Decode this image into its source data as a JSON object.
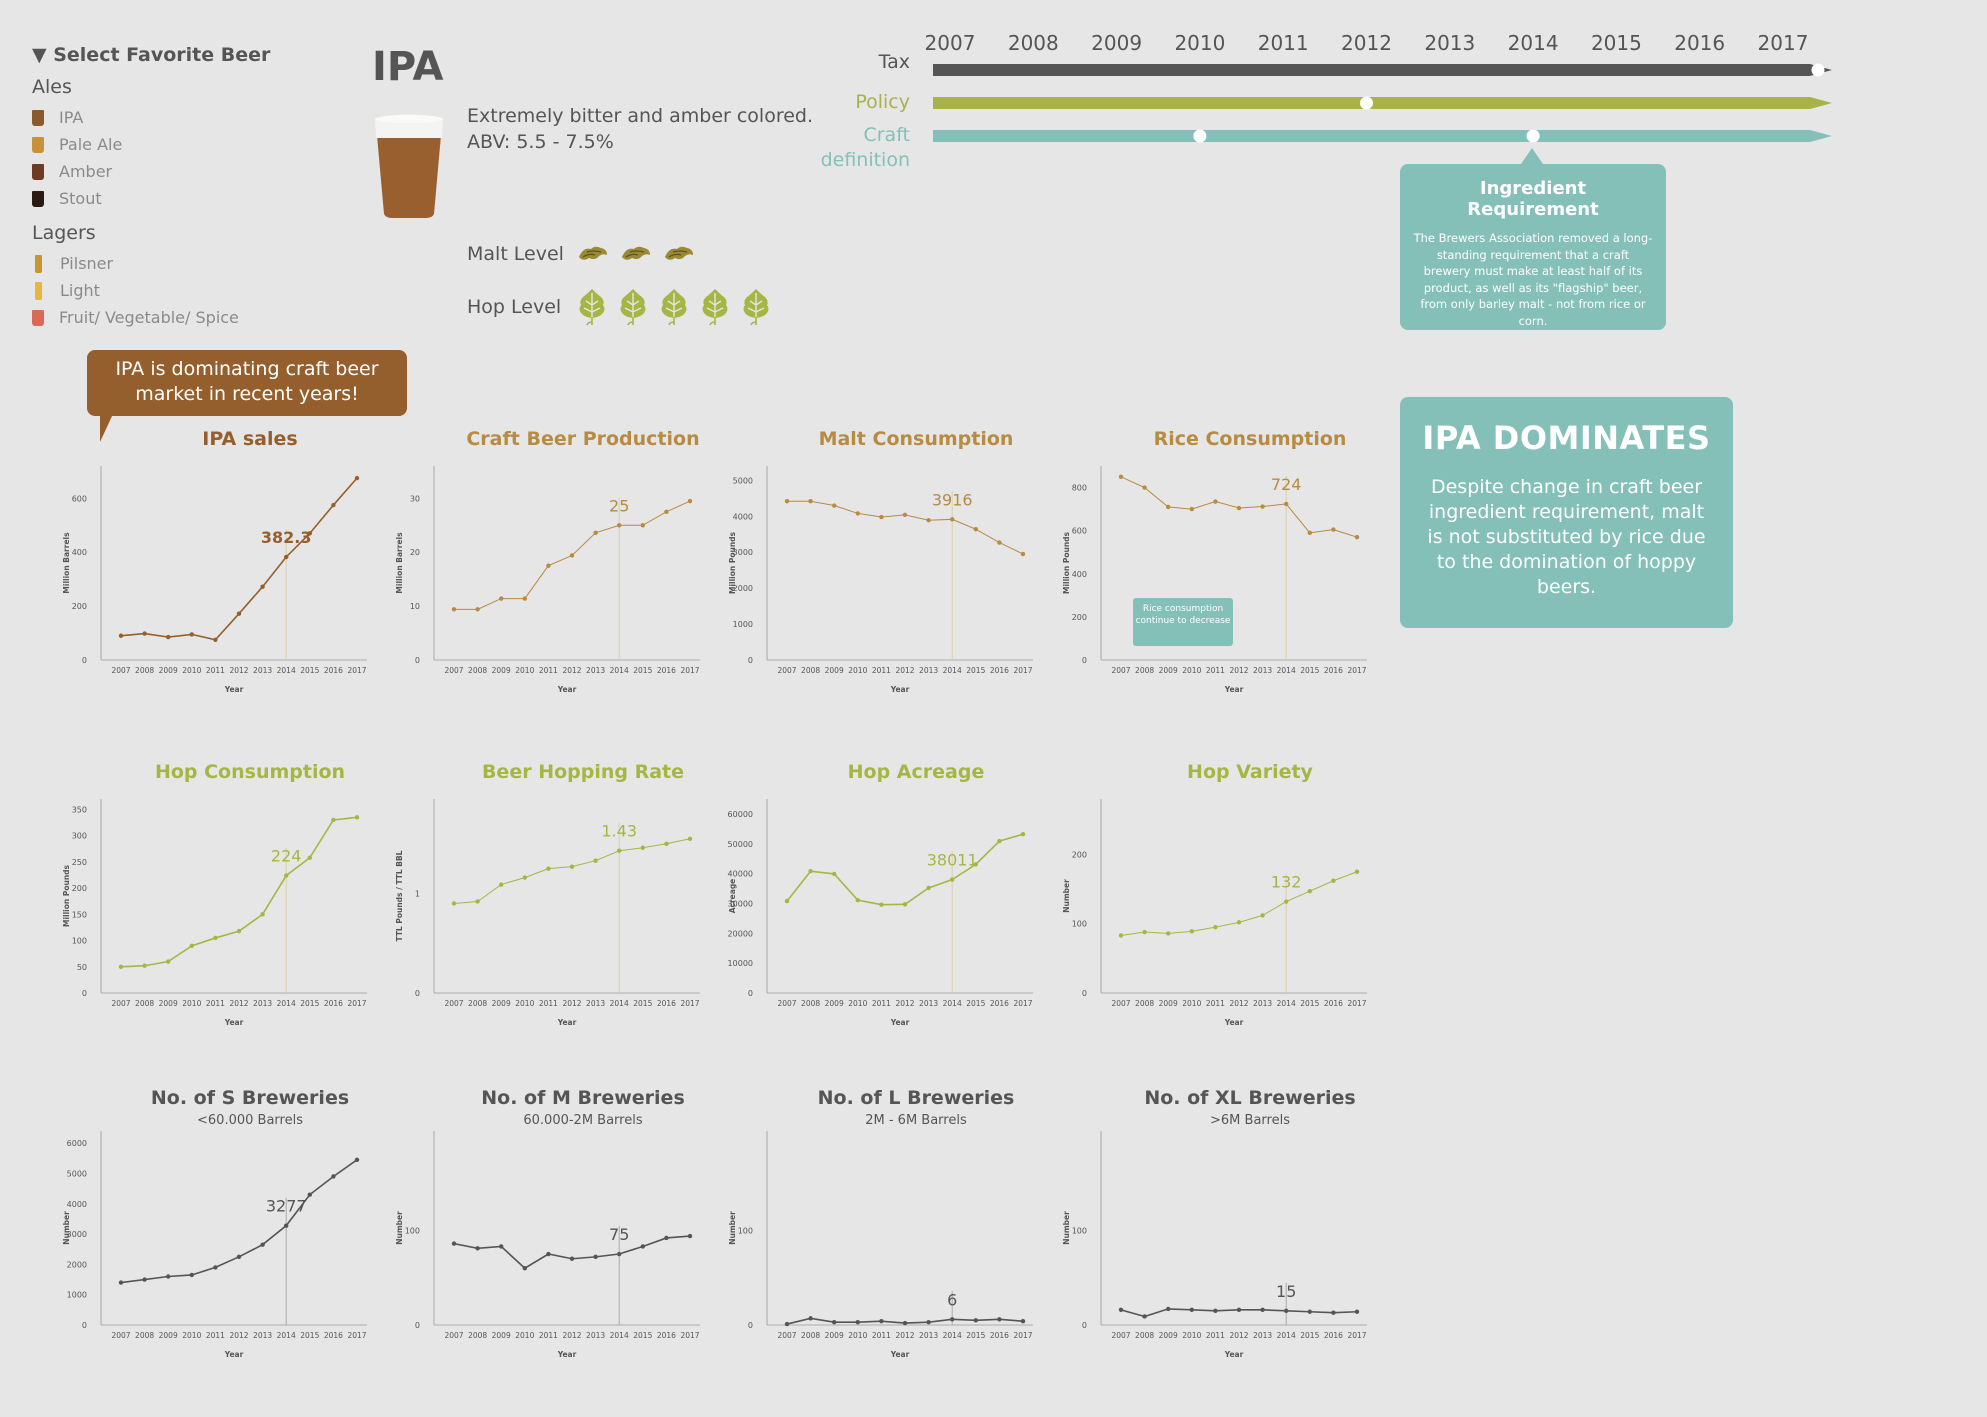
{
  "sidebar": {
    "select_label": "▼ Select Favorite Beer",
    "groups": [
      {
        "label": "Ales",
        "items": [
          {
            "label": "IPA",
            "color": "#8b5a2b"
          },
          {
            "label": "Pale Ale",
            "color": "#c8923a"
          },
          {
            "label": "Amber",
            "color": "#6e3a22"
          },
          {
            "label": "Stout",
            "color": "#2b1a14"
          }
        ]
      },
      {
        "label": "Lagers",
        "items": [
          {
            "label": "Pilsner",
            "color": "#c9962e"
          },
          {
            "label": "Light",
            "color": "#e8b640"
          },
          {
            "label": "Fruit/ Vegetable/ Spice",
            "color": "#d96a57"
          }
        ]
      }
    ]
  },
  "beer": {
    "name": "IPA",
    "description": "Extremely bitter and amber colored.",
    "abv": "ABV: 5.5 - 7.5%",
    "malt_label": "Malt Level",
    "malt_level": 3,
    "hop_label": "Hop Level",
    "hop_level": 5,
    "glass_color": "#9a5f2e",
    "foam_color": "#f4f4f2"
  },
  "timeline": {
    "years": [
      "2007",
      "2008",
      "2009",
      "2010",
      "2011",
      "2012",
      "2013",
      "2014",
      "2015",
      "2016",
      "2017"
    ],
    "tracks": [
      {
        "label": "Tax",
        "color": "#555555",
        "events": [
          "2017"
        ]
      },
      {
        "label": "Policy",
        "color": "#a9b14a",
        "events": [
          "2012"
        ]
      },
      {
        "label": "Craft definition",
        "color": "#84c0b8",
        "events": [
          "2010",
          "2014"
        ]
      }
    ]
  },
  "ingredient_box": {
    "title": "Ingredient Requirement",
    "body": "The Brewers Association removed a long-standing requirement that a craft brewery must make at least half of its product, as well as its \"flagship\" beer, from only barley malt - not from rice or corn."
  },
  "callout": {
    "text": "IPA is dominating craft beer market in recent years!"
  },
  "dominates": {
    "title": "IPA DOMINATES",
    "body": "Despite change in craft beer ingredient requirement, malt is not substituted by rice due to the domination of hoppy beers."
  },
  "rice_note": "Rice consumption continue to decrease",
  "colors": {
    "brown": "#955f2d",
    "gold": "#b78b42",
    "green": "#a5b645",
    "gray": "#555555"
  },
  "chart_data": [
    {
      "type": "line",
      "title": "IPA sales",
      "ylabel": "Million Barrels",
      "xlabel": "Year",
      "x": [
        2007,
        2008,
        2009,
        2010,
        2011,
        2012,
        2013,
        2014,
        2015,
        2016,
        2017
      ],
      "values": [
        90,
        98,
        85,
        95,
        75,
        172,
        272,
        382.3,
        470,
        575,
        675
      ],
      "yticks": [
        0,
        200,
        400,
        600
      ],
      "ylim": [
        0,
        720
      ],
      "highlight_index": 7,
      "highlight_label": "382.3",
      "color": "#955f2d"
    },
    {
      "type": "line",
      "title": "Craft Beer Production",
      "ylabel": "Million Barrels",
      "xlabel": "Year",
      "x": [
        2007,
        2008,
        2009,
        2010,
        2011,
        2012,
        2013,
        2014,
        2015,
        2016,
        2017
      ],
      "values": [
        9.4,
        9.4,
        11.4,
        11.4,
        17.5,
        19.4,
        23.6,
        25,
        25,
        27.5,
        29.5
      ],
      "yticks": [
        0,
        10,
        20,
        30
      ],
      "ylim": [
        0,
        36
      ],
      "highlight_index": 7,
      "highlight_label": "25",
      "color": "#b78b42"
    },
    {
      "type": "line",
      "title": "Malt Consumption",
      "ylabel": "Million Pounds",
      "xlabel": "Year",
      "x": [
        2007,
        2008,
        2009,
        2010,
        2011,
        2012,
        2013,
        2014,
        2015,
        2016,
        2017
      ],
      "values": [
        4420,
        4420,
        4300,
        4080,
        3980,
        4040,
        3890,
        3916,
        3640,
        3270,
        2950
      ],
      "yticks": [
        0,
        1000,
        2000,
        3000,
        4000,
        5000
      ],
      "ylim": [
        0,
        5400
      ],
      "highlight_index": 7,
      "highlight_label": "3916",
      "color": "#b78b42"
    },
    {
      "type": "line",
      "title": "Rice Consumption",
      "ylabel": "Million Pounds",
      "xlabel": "Year",
      "x": [
        2007,
        2008,
        2009,
        2010,
        2011,
        2012,
        2013,
        2014,
        2015,
        2016,
        2017
      ],
      "values": [
        850,
        800,
        710,
        700,
        735,
        705,
        712,
        724,
        590,
        605,
        570
      ],
      "yticks": [
        0,
        200,
        400,
        600,
        800
      ],
      "ylim": [
        0,
        900
      ],
      "highlight_index": 7,
      "highlight_label": "724",
      "color": "#b78b42"
    },
    {
      "type": "line",
      "title": "Hop Consumption",
      "ylabel": "Million Pounds",
      "xlabel": "Year",
      "x": [
        2007,
        2008,
        2009,
        2010,
        2011,
        2012,
        2013,
        2014,
        2015,
        2016,
        2017
      ],
      "values": [
        50,
        52,
        60,
        90,
        105,
        118,
        150,
        224,
        258,
        330,
        335
      ],
      "yticks": [
        0,
        50,
        100,
        150,
        200,
        250,
        300,
        350
      ],
      "ylim": [
        0,
        370
      ],
      "highlight_index": 7,
      "highlight_label": "224",
      "color": "#a5b645"
    },
    {
      "type": "line",
      "title": "Beer Hopping Rate",
      "ylabel": "TTL Pounds / TTL BBL",
      "xlabel": "Year",
      "x": [
        2007,
        2008,
        2009,
        2010,
        2011,
        2012,
        2013,
        2014,
        2015,
        2016,
        2017
      ],
      "values": [
        0.9,
        0.92,
        1.09,
        1.16,
        1.25,
        1.27,
        1.33,
        1.43,
        1.46,
        1.5,
        1.55
      ],
      "yticks": [
        0,
        1
      ],
      "ylim": [
        0,
        1.95
      ],
      "highlight_index": 7,
      "highlight_label": "1.43",
      "color": "#a5b645"
    },
    {
      "type": "line",
      "title": "Hop Acreage",
      "ylabel": "Acreage",
      "xlabel": "Year",
      "x": [
        2007,
        2008,
        2009,
        2010,
        2011,
        2012,
        2013,
        2014,
        2015,
        2016,
        2017
      ],
      "values": [
        30800,
        40800,
        39900,
        31100,
        29600,
        29700,
        35200,
        38011,
        43100,
        50900,
        53200
      ],
      "yticks": [
        0,
        10000,
        20000,
        30000,
        40000,
        50000,
        60000
      ],
      "ylim": [
        0,
        65000
      ],
      "highlight_index": 7,
      "highlight_label": "38011",
      "color": "#a5b645"
    },
    {
      "type": "line",
      "title": "Hop Variety",
      "ylabel": "Number",
      "xlabel": "Year",
      "x": [
        2007,
        2008,
        2009,
        2010,
        2011,
        2012,
        2013,
        2014,
        2015,
        2016,
        2017
      ],
      "values": [
        83,
        88,
        86,
        89,
        95,
        102,
        112,
        132,
        147,
        162,
        175
      ],
      "yticks": [
        0,
        100,
        200
      ],
      "ylim": [
        0,
        280
      ],
      "highlight_index": 7,
      "highlight_label": "132",
      "color": "#a5b645"
    },
    {
      "type": "line",
      "title": "No. of S Breweries",
      "subtitle": "<60.000 Barrels",
      "ylabel": "Number",
      "xlabel": "Year",
      "x": [
        2007,
        2008,
        2009,
        2010,
        2011,
        2012,
        2013,
        2014,
        2015,
        2016,
        2017
      ],
      "values": [
        1400,
        1500,
        1600,
        1650,
        1900,
        2250,
        2650,
        3277,
        4300,
        4900,
        5450
      ],
      "yticks": [
        0,
        1000,
        2000,
        3000,
        4000,
        5000,
        6000
      ],
      "ylim": [
        0,
        6400
      ],
      "highlight_index": 7,
      "highlight_label": "3277",
      "color": "#555555"
    },
    {
      "type": "line",
      "title": "No. of M Breweries",
      "subtitle": "60.000-2M Barrels",
      "ylabel": "Number",
      "xlabel": "Year",
      "x": [
        2007,
        2008,
        2009,
        2010,
        2011,
        2012,
        2013,
        2014,
        2015,
        2016,
        2017
      ],
      "values": [
        86,
        81,
        83,
        60,
        75,
        70,
        72,
        75,
        83,
        92,
        94
      ],
      "yticks": [
        0,
        100
      ],
      "ylim": [
        0,
        205
      ],
      "highlight_index": 7,
      "highlight_label": "75",
      "color": "#555555"
    },
    {
      "type": "line",
      "title": "No. of L Breweries",
      "subtitle": "2M - 6M Barrels",
      "ylabel": "Number",
      "xlabel": "Year",
      "x": [
        2007,
        2008,
        2009,
        2010,
        2011,
        2012,
        2013,
        2014,
        2015,
        2016,
        2017
      ],
      "values": [
        1,
        7,
        3,
        3,
        4,
        2,
        3,
        6,
        5,
        6,
        4
      ],
      "yticks": [
        0,
        100
      ],
      "ylim": [
        0,
        205
      ],
      "highlight_index": 7,
      "highlight_label": "6",
      "color": "#555555"
    },
    {
      "type": "line",
      "title": "No. of XL Breweries",
      "subtitle": ">6M Barrels",
      "ylabel": "Number",
      "xlabel": "Year",
      "x": [
        2007,
        2008,
        2009,
        2010,
        2011,
        2012,
        2013,
        2014,
        2015,
        2016,
        2017
      ],
      "values": [
        16,
        9,
        17,
        16,
        15,
        16,
        16,
        15,
        14,
        13,
        14
      ],
      "yticks": [
        0,
        100
      ],
      "ylim": [
        0,
        205
      ],
      "highlight_index": 7,
      "highlight_label": "15",
      "color": "#555555"
    }
  ]
}
